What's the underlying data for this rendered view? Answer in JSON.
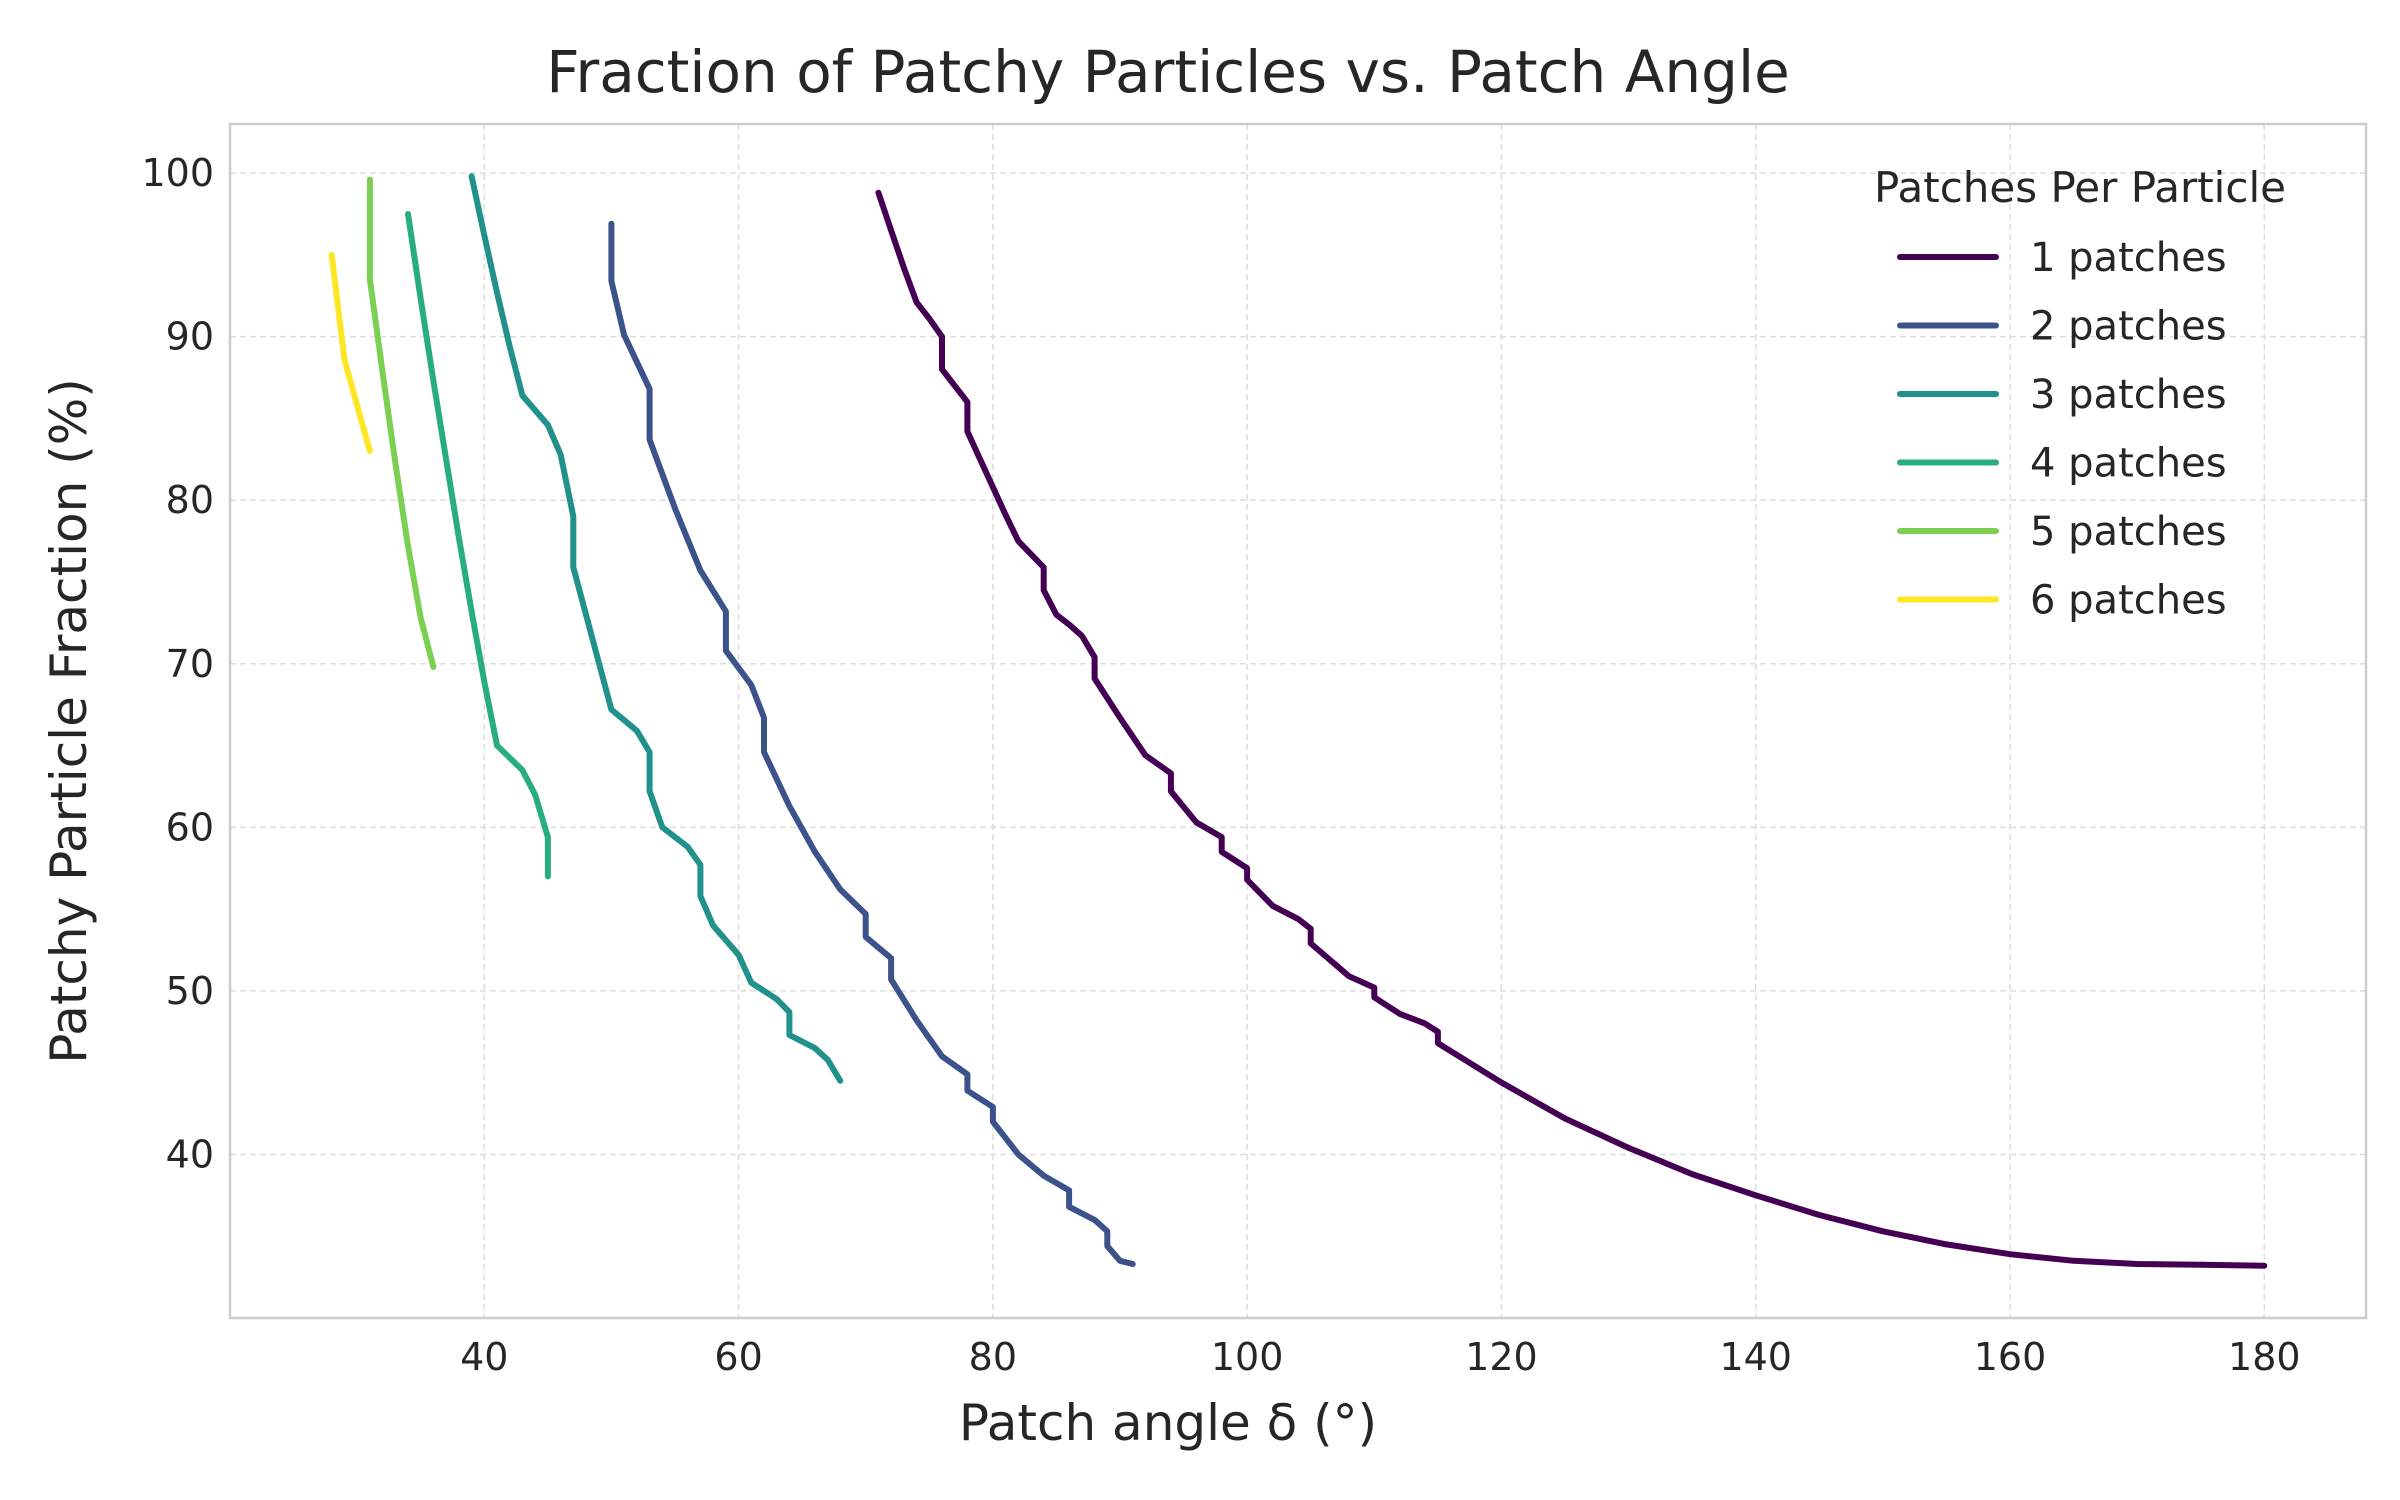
{
  "chart_data": {
    "type": "line",
    "title": "Fraction of Patchy Particles vs. Patch Angle",
    "xlabel": "Patch angle δ (°)",
    "ylabel": "Patchy Particle Fraction (%)",
    "xlim": [
      20,
      188
    ],
    "ylim": [
      30,
      103
    ],
    "xticks": [
      40,
      60,
      80,
      100,
      120,
      140,
      160,
      180
    ],
    "yticks": [
      40,
      50,
      60,
      70,
      80,
      90,
      100
    ],
    "grid": true,
    "legend": {
      "title": "Patches Per Particle",
      "placement": "top-right"
    },
    "series": [
      {
        "name": "1 patches",
        "color": "#440154",
        "points": [
          [
            71,
            98.8
          ],
          [
            72,
            96.5
          ],
          [
            73,
            94.2
          ],
          [
            74,
            92.1
          ],
          [
            75,
            91.1
          ],
          [
            76,
            90.0
          ],
          [
            76,
            88.0
          ],
          [
            77,
            87.0
          ],
          [
            78,
            86.0
          ],
          [
            78,
            84.2
          ],
          [
            79,
            82.5
          ],
          [
            80,
            80.8
          ],
          [
            81,
            79.1
          ],
          [
            82,
            77.5
          ],
          [
            83,
            76.7
          ],
          [
            84,
            75.9
          ],
          [
            84,
            74.5
          ],
          [
            85,
            73.0
          ],
          [
            86,
            72.4
          ],
          [
            87,
            71.7
          ],
          [
            88,
            70.4
          ],
          [
            88,
            69.1
          ],
          [
            90,
            66.7
          ],
          [
            92,
            64.4
          ],
          [
            94,
            63.3
          ],
          [
            94,
            62.2
          ],
          [
            96,
            60.3
          ],
          [
            98,
            59.4
          ],
          [
            98,
            58.5
          ],
          [
            100,
            57.5
          ],
          [
            100,
            56.8
          ],
          [
            102,
            55.2
          ],
          [
            104,
            54.4
          ],
          [
            105,
            53.8
          ],
          [
            105,
            52.9
          ],
          [
            108,
            50.9
          ],
          [
            110,
            50.2
          ],
          [
            110,
            49.6
          ],
          [
            112,
            48.6
          ],
          [
            114,
            48.0
          ],
          [
            115,
            47.5
          ],
          [
            115,
            46.8
          ],
          [
            120,
            44.4
          ],
          [
            125,
            42.2
          ],
          [
            130,
            40.4
          ],
          [
            135,
            38.8
          ],
          [
            140,
            37.5
          ],
          [
            145,
            36.3
          ],
          [
            150,
            35.3
          ],
          [
            155,
            34.5
          ],
          [
            160,
            33.9
          ],
          [
            165,
            33.5
          ],
          [
            170,
            33.3
          ],
          [
            175,
            33.25
          ],
          [
            180,
            33.2
          ]
        ]
      },
      {
        "name": "2 patches",
        "color": "#3b528b",
        "points": [
          [
            50,
            96.9
          ],
          [
            50,
            93.4
          ],
          [
            51,
            90.1
          ],
          [
            53,
            86.8
          ],
          [
            53,
            83.7
          ],
          [
            55,
            79.5
          ],
          [
            57,
            75.7
          ],
          [
            59,
            73.2
          ],
          [
            59,
            70.8
          ],
          [
            61,
            68.7
          ],
          [
            62,
            66.7
          ],
          [
            62,
            64.6
          ],
          [
            64,
            61.3
          ],
          [
            66,
            58.5
          ],
          [
            68,
            56.2
          ],
          [
            70,
            54.7
          ],
          [
            70,
            53.3
          ],
          [
            72,
            52.0
          ],
          [
            72,
            50.7
          ],
          [
            74,
            48.2
          ],
          [
            76,
            46.0
          ],
          [
            78,
            44.9
          ],
          [
            78,
            43.9
          ],
          [
            80,
            42.9
          ],
          [
            80,
            42.0
          ],
          [
            82,
            40.0
          ],
          [
            84,
            38.7
          ],
          [
            86,
            37.8
          ],
          [
            86,
            36.8
          ],
          [
            88,
            36.0
          ],
          [
            89,
            35.3
          ],
          [
            89,
            34.4
          ],
          [
            90,
            33.5
          ],
          [
            91,
            33.3
          ]
        ]
      },
      {
        "name": "3 patches",
        "color": "#21918c",
        "points": [
          [
            39,
            99.8
          ],
          [
            40,
            96.2
          ],
          [
            41,
            92.7
          ],
          [
            42,
            89.4
          ],
          [
            43,
            86.4
          ],
          [
            45,
            84.6
          ],
          [
            46,
            82.8
          ],
          [
            47,
            79.0
          ],
          [
            47,
            75.9
          ],
          [
            48,
            73.0
          ],
          [
            49,
            70.1
          ],
          [
            50,
            67.2
          ],
          [
            52,
            65.9
          ],
          [
            53,
            64.6
          ],
          [
            53,
            62.2
          ],
          [
            54,
            60.0
          ],
          [
            56,
            58.8
          ],
          [
            57,
            57.7
          ],
          [
            57,
            55.8
          ],
          [
            58,
            54.0
          ],
          [
            60,
            52.2
          ],
          [
            61,
            50.5
          ],
          [
            63,
            49.5
          ],
          [
            64,
            48.7
          ],
          [
            64,
            47.3
          ],
          [
            66,
            46.5
          ],
          [
            67,
            45.8
          ],
          [
            68,
            44.5
          ]
        ]
      },
      {
        "name": "4 patches",
        "color": "#27ad81",
        "points": [
          [
            34,
            97.5
          ],
          [
            35,
            92.3
          ],
          [
            36,
            87.3
          ],
          [
            37,
            82.5
          ],
          [
            38,
            77.7
          ],
          [
            39,
            73.2
          ],
          [
            40,
            68.9
          ],
          [
            41,
            65.0
          ],
          [
            43,
            63.5
          ],
          [
            44,
            62.0
          ],
          [
            45,
            59.4
          ],
          [
            45,
            57.0
          ]
        ]
      },
      {
        "name": "5 patches",
        "color": "#7ad151",
        "points": [
          [
            31,
            99.6
          ],
          [
            31,
            93.5
          ],
          [
            32,
            87.8
          ],
          [
            33,
            82.3
          ],
          [
            34,
            77.2
          ],
          [
            35,
            72.8
          ],
          [
            36,
            69.8
          ]
        ]
      },
      {
        "name": "6 patches",
        "color": "#fde725",
        "points": [
          [
            28,
            95.0
          ],
          [
            29,
            88.6
          ],
          [
            30,
            85.8
          ],
          [
            31,
            83.0
          ]
        ]
      }
    ]
  }
}
